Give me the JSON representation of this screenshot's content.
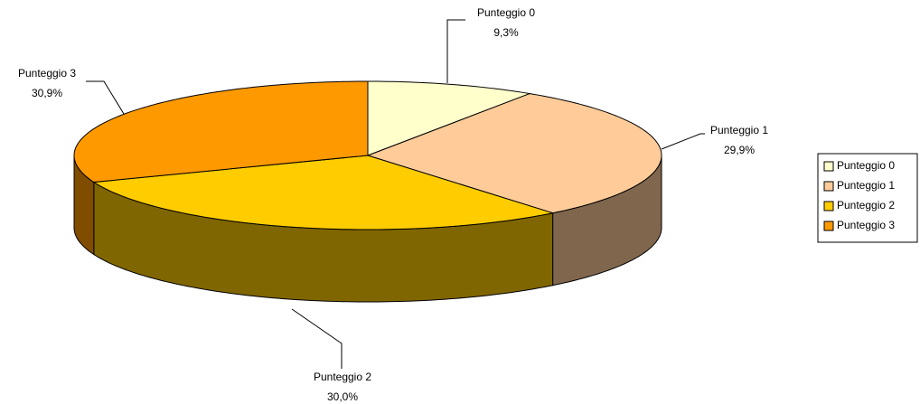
{
  "chart_data": {
    "type": "pie",
    "categories": [
      "Punteggio 0",
      "Punteggio 1",
      "Punteggio 2",
      "Punteggio 3"
    ],
    "values": [
      9.3,
      29.9,
      30.0,
      30.9
    ],
    "value_labels": [
      "9,3%",
      "29,9%",
      "30,0%",
      "30,9%"
    ],
    "colors": [
      "#ffffcc",
      "#ffcc99",
      "#ffcc00",
      "#ff9900"
    ],
    "legend": "right"
  }
}
